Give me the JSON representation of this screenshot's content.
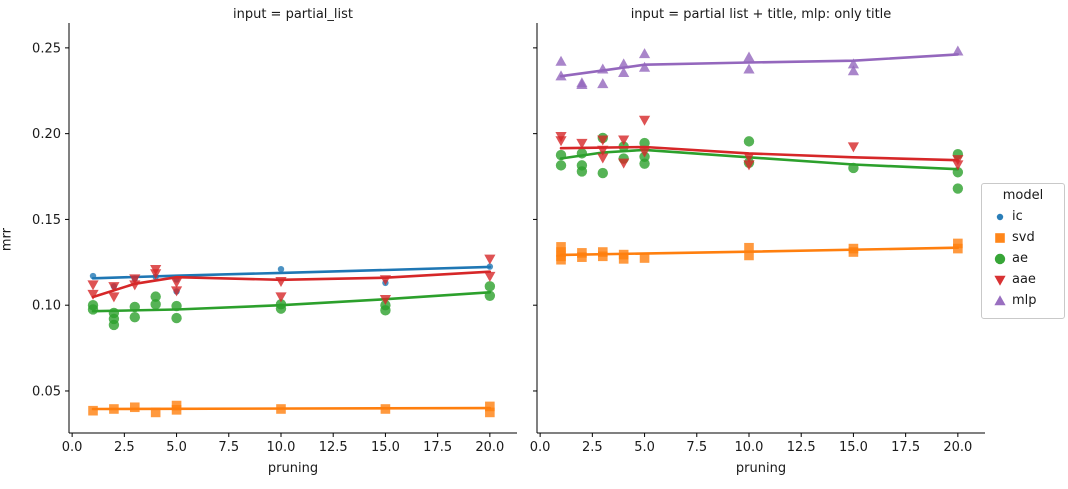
{
  "figure": {
    "ylabel": "mrr",
    "legend": {
      "title": "model",
      "entries": [
        {
          "label": "ic",
          "marker": "point",
          "color": "#1f77b4"
        },
        {
          "label": "svd",
          "marker": "square",
          "color": "#ff7f0e"
        },
        {
          "label": "ae",
          "marker": "circle",
          "color": "#2ca02c"
        },
        {
          "label": "aae",
          "marker": "triangle_down",
          "color": "#d62728"
        },
        {
          "label": "mlp",
          "marker": "triangle_up",
          "color": "#9467bd"
        }
      ]
    }
  },
  "chart_data": [
    {
      "type": "scatter",
      "title": "input = partial_list",
      "xlabel": "pruning",
      "ylabel": "mrr",
      "xlim": [
        -0.15,
        21.3
      ],
      "ylim": [
        0.0255,
        0.2645
      ],
      "grid": false,
      "legend_position": "outside-right",
      "xticks": {
        "values": [
          0,
          2.5,
          5,
          7.5,
          10,
          12.5,
          15,
          17.5,
          20
        ],
        "labels": [
          "0.0",
          "2.5",
          "5.0",
          "7.5",
          "10.0",
          "12.5",
          "15.0",
          "17.5",
          "20.0"
        ],
        "show_labels": true
      },
      "yticks": {
        "values": [
          0.05,
          0.1,
          0.15,
          0.2,
          0.25
        ],
        "labels": [
          "0.05",
          "0.10",
          "0.15",
          "0.20",
          "0.25"
        ],
        "show_labels": true
      },
      "series": [
        {
          "name": "ic",
          "marker": "point",
          "color": "#1f77b4",
          "points": [
            [
              1,
              0.117
            ],
            [
              2,
              0.111
            ],
            [
              3,
              0.1155
            ],
            [
              4,
              0.1165
            ],
            [
              5,
              0.115
            ],
            [
              5,
              0.108
            ],
            [
              10,
              0.121
            ],
            [
              15,
              0.113
            ],
            [
              20,
              0.1225
            ]
          ],
          "line": [
            [
              1,
              0.1157
            ],
            [
              5,
              0.1172
            ],
            [
              10,
              0.1188
            ],
            [
              15,
              0.1205
            ],
            [
              20,
              0.1223
            ]
          ]
        },
        {
          "name": "svd",
          "marker": "square",
          "color": "#ff7f0e",
          "points": [
            [
              1,
              0.0385
            ],
            [
              2,
              0.0395
            ],
            [
              3,
              0.0405
            ],
            [
              4,
              0.0375
            ],
            [
              5,
              0.0415
            ],
            [
              5,
              0.039
            ],
            [
              10,
              0.0395
            ],
            [
              15,
              0.0395
            ],
            [
              20,
              0.041
            ],
            [
              20,
              0.0375
            ]
          ],
          "line": [
            [
              1,
              0.0395
            ],
            [
              20,
              0.04
            ]
          ]
        },
        {
          "name": "ae",
          "marker": "circle",
          "color": "#2ca02c",
          "points": [
            [
              1,
              0.1
            ],
            [
              1,
              0.0975
            ],
            [
              2,
              0.0955
            ],
            [
              2,
              0.092
            ],
            [
              2,
              0.0885
            ],
            [
              3,
              0.099
            ],
            [
              3,
              0.093
            ],
            [
              4,
              0.105
            ],
            [
              4,
              0.1005
            ],
            [
              5,
              0.0995
            ],
            [
              5,
              0.0925
            ],
            [
              10,
              0.1005
            ],
            [
              10,
              0.098
            ],
            [
              15,
              0.1
            ],
            [
              15,
              0.097
            ],
            [
              20,
              0.111
            ],
            [
              20,
              0.1055
            ]
          ],
          "line": [
            [
              1,
              0.0965
            ],
            [
              5,
              0.0975
            ],
            [
              10,
              0.1
            ],
            [
              15,
              0.1035
            ],
            [
              20,
              0.1075
            ]
          ]
        },
        {
          "name": "aae",
          "marker": "triangle_down",
          "color": "#d62728",
          "points": [
            [
              1,
              0.112
            ],
            [
              1,
              0.1065
            ],
            [
              2,
              0.111
            ],
            [
              2,
              0.105
            ],
            [
              3,
              0.1155
            ],
            [
              3,
              0.112
            ],
            [
              4,
              0.121
            ],
            [
              4,
              0.1185
            ],
            [
              5,
              0.1135
            ],
            [
              5,
              0.1085
            ],
            [
              10,
              0.114
            ],
            [
              10,
              0.105
            ],
            [
              15,
              0.115
            ],
            [
              15,
              0.1035
            ],
            [
              20,
              0.127
            ],
            [
              20,
              0.117
            ]
          ],
          "line": [
            [
              1,
              0.1048
            ],
            [
              3,
              0.1125
            ],
            [
              5,
              0.1163
            ],
            [
              10,
              0.1148
            ],
            [
              15,
              0.116
            ],
            [
              20,
              0.1195
            ]
          ]
        }
      ]
    },
    {
      "type": "scatter",
      "title": "input = partial list + title, mlp: only title",
      "xlabel": "pruning",
      "ylabel": "mrr",
      "xlim": [
        -0.15,
        21.3
      ],
      "ylim": [
        0.0255,
        0.2645
      ],
      "grid": false,
      "legend_position": "outside-right",
      "xticks": {
        "values": [
          0,
          2.5,
          5,
          7.5,
          10,
          12.5,
          15,
          17.5,
          20
        ],
        "labels": [
          "0.0",
          "2.5",
          "5.0",
          "7.5",
          "10.0",
          "12.5",
          "15.0",
          "17.5",
          "20.0"
        ],
        "show_labels": true
      },
      "yticks": {
        "values": [
          0.05,
          0.1,
          0.15,
          0.2,
          0.25
        ],
        "labels": [
          "0.05",
          "0.10",
          "0.15",
          "0.20",
          "0.25"
        ],
        "show_labels": false
      },
      "series": [
        {
          "name": "svd",
          "marker": "square",
          "color": "#ff7f0e",
          "points": [
            [
              1,
              0.134
            ],
            [
              1,
              0.131
            ],
            [
              1,
              0.1285
            ],
            [
              1,
              0.1265
            ],
            [
              2,
              0.1305
            ],
            [
              2,
              0.128
            ],
            [
              3,
              0.131
            ],
            [
              3,
              0.1285
            ],
            [
              4,
              0.1295
            ],
            [
              4,
              0.127
            ],
            [
              5,
              0.1275
            ],
            [
              10,
              0.1335
            ],
            [
              10,
              0.129
            ],
            [
              15,
              0.133
            ],
            [
              15,
              0.131
            ],
            [
              20,
              0.136
            ],
            [
              20,
              0.133
            ]
          ],
          "line": [
            [
              1,
              0.1293
            ],
            [
              10,
              0.1312
            ],
            [
              20,
              0.1335
            ]
          ]
        },
        {
          "name": "ae",
          "marker": "circle",
          "color": "#2ca02c",
          "points": [
            [
              1,
              0.1875
            ],
            [
              1,
              0.1815
            ],
            [
              2,
              0.1885
            ],
            [
              2,
              0.1815
            ],
            [
              2,
              0.178
            ],
            [
              3,
              0.1975
            ],
            [
              3,
              0.177
            ],
            [
              4,
              0.1925
            ],
            [
              4,
              0.1855
            ],
            [
              5,
              0.1945
            ],
            [
              5,
              0.1865
            ],
            [
              5,
              0.1825
            ],
            [
              10,
              0.1955
            ],
            [
              10,
              0.183
            ],
            [
              15,
              0.18
            ],
            [
              20,
              0.188
            ],
            [
              20,
              0.1775
            ],
            [
              20,
              0.168
            ]
          ],
          "line": [
            [
              1,
              0.1855
            ],
            [
              3,
              0.189
            ],
            [
              5,
              0.1905
            ],
            [
              10,
              0.1862
            ],
            [
              15,
              0.182
            ],
            [
              20,
              0.1793
            ]
          ]
        },
        {
          "name": "aae",
          "marker": "triangle_down",
          "color": "#d62728",
          "points": [
            [
              1,
              0.1985
            ],
            [
              1,
              0.196
            ],
            [
              2,
              0.1945
            ],
            [
              3,
              0.1965
            ],
            [
              3,
              0.1905
            ],
            [
              3,
              0.186
            ],
            [
              4,
              0.1965
            ],
            [
              4,
              0.183
            ],
            [
              5,
              0.208
            ],
            [
              5,
              0.1895
            ],
            [
              10,
              0.1865
            ],
            [
              10,
              0.182
            ],
            [
              15,
              0.1925
            ],
            [
              20,
              0.185
            ],
            [
              20,
              0.182
            ]
          ],
          "line": [
            [
              1,
              0.1915
            ],
            [
              5,
              0.1922
            ],
            [
              10,
              0.1885
            ],
            [
              15,
              0.1862
            ],
            [
              20,
              0.1845
            ]
          ]
        },
        {
          "name": "mlp",
          "marker": "triangle_up",
          "color": "#9467bd",
          "points": [
            [
              1,
              0.242
            ],
            [
              1,
              0.2335
            ],
            [
              2,
              0.2295
            ],
            [
              2,
              0.2285
            ],
            [
              3,
              0.2375
            ],
            [
              3,
              0.229
            ],
            [
              4,
              0.2405
            ],
            [
              4,
              0.2355
            ],
            [
              5,
              0.2465
            ],
            [
              5,
              0.2385
            ],
            [
              10,
              0.2445
            ],
            [
              10,
              0.2375
            ],
            [
              15,
              0.2405
            ],
            [
              15,
              0.2365
            ],
            [
              20,
              0.248
            ]
          ],
          "line": [
            [
              1,
              0.2335
            ],
            [
              5,
              0.2402
            ],
            [
              10,
              0.2415
            ],
            [
              15,
              0.2425
            ],
            [
              20,
              0.2462
            ]
          ]
        }
      ]
    }
  ]
}
